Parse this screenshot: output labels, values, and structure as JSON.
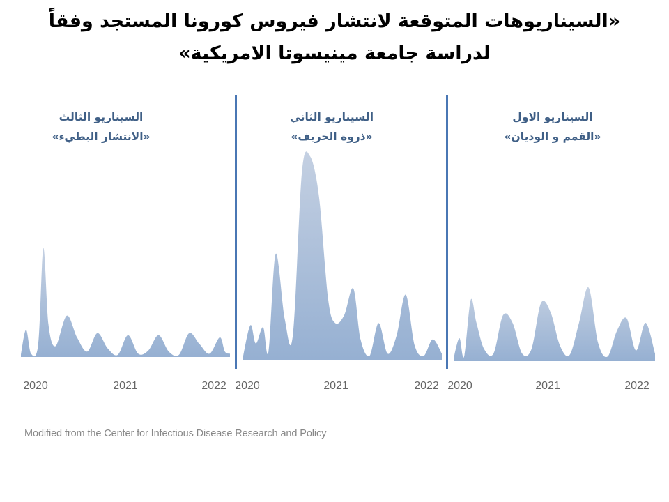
{
  "title": {
    "line1": "«السيناريوهات المتوقعة لانتشار فيروس كورونا المستجد وفقاً",
    "line2": "لدراسة جامعة مينيسوتا الامريكية»"
  },
  "source": "Modified from the Center for Infectious Disease Research and Policy",
  "colors": {
    "fill_top": "#c4d0e2",
    "fill_bottom": "#96b0d2",
    "separator": "#4a77b4",
    "panel_title": "#3f5f86"
  },
  "chart_data": [
    {
      "type": "area",
      "title_line1": "السيناريو الثالث",
      "title_line2": "«الانتشار البطيء»",
      "x_ticks": [
        "2020",
        "2021",
        "2022"
      ],
      "x": [
        2020.0,
        2020.05,
        2020.1,
        2020.17,
        2020.22,
        2020.27,
        2020.34,
        2020.45,
        2020.55,
        2020.65,
        2020.75,
        2020.85,
        2020.95,
        2021.05,
        2021.15,
        2021.25,
        2021.35,
        2021.45,
        2021.55,
        2021.65,
        2021.75,
        2021.85,
        2021.95,
        2022.0,
        2022.05
      ],
      "values": [
        2,
        25,
        3,
        12,
        100,
        30,
        10,
        38,
        18,
        5,
        22,
        8,
        2,
        20,
        3,
        6,
        20,
        5,
        2,
        22,
        12,
        3,
        18,
        5,
        3
      ],
      "ylim": [
        0,
        100
      ]
    },
    {
      "type": "area",
      "title_line1": "السيناريو الثاني",
      "title_line2": "«ذروة الخريف»",
      "x_ticks": [
        "2020",
        "2021",
        "2022"
      ],
      "x": [
        2020.0,
        2020.08,
        2020.14,
        2020.22,
        2020.28,
        2020.36,
        2020.46,
        2020.55,
        2020.65,
        2020.74,
        2020.84,
        2020.94,
        2021.02,
        2021.12,
        2021.22,
        2021.3,
        2021.4,
        2021.5,
        2021.6,
        2021.7,
        2021.8,
        2021.9,
        2022.0,
        2022.1,
        2022.2
      ],
      "values": [
        2,
        17,
        8,
        16,
        4,
        52,
        20,
        12,
        92,
        100,
        80,
        30,
        18,
        22,
        35,
        10,
        2,
        18,
        3,
        12,
        32,
        7,
        2,
        10,
        3
      ],
      "ylim": [
        0,
        100
      ]
    },
    {
      "type": "area",
      "title_line1": "السيناريو الاول",
      "title_line2": "«القمم و الوديان»",
      "x_ticks": [
        "2020",
        "2021",
        "2022"
      ],
      "x": [
        2020.0,
        2020.06,
        2020.11,
        2020.18,
        2020.24,
        2020.32,
        2020.42,
        2020.52,
        2020.62,
        2020.72,
        2020.82,
        2020.92,
        2021.02,
        2021.12,
        2021.22,
        2021.32,
        2021.42,
        2021.52,
        2021.62,
        2021.72,
        2021.82,
        2021.92,
        2022.02,
        2022.12
      ],
      "values": [
        2,
        15,
        3,
        40,
        25,
        8,
        5,
        30,
        25,
        5,
        8,
        38,
        32,
        10,
        4,
        25,
        48,
        12,
        3,
        20,
        28,
        7,
        25,
        5
      ],
      "ylim": [
        0,
        100
      ]
    }
  ]
}
